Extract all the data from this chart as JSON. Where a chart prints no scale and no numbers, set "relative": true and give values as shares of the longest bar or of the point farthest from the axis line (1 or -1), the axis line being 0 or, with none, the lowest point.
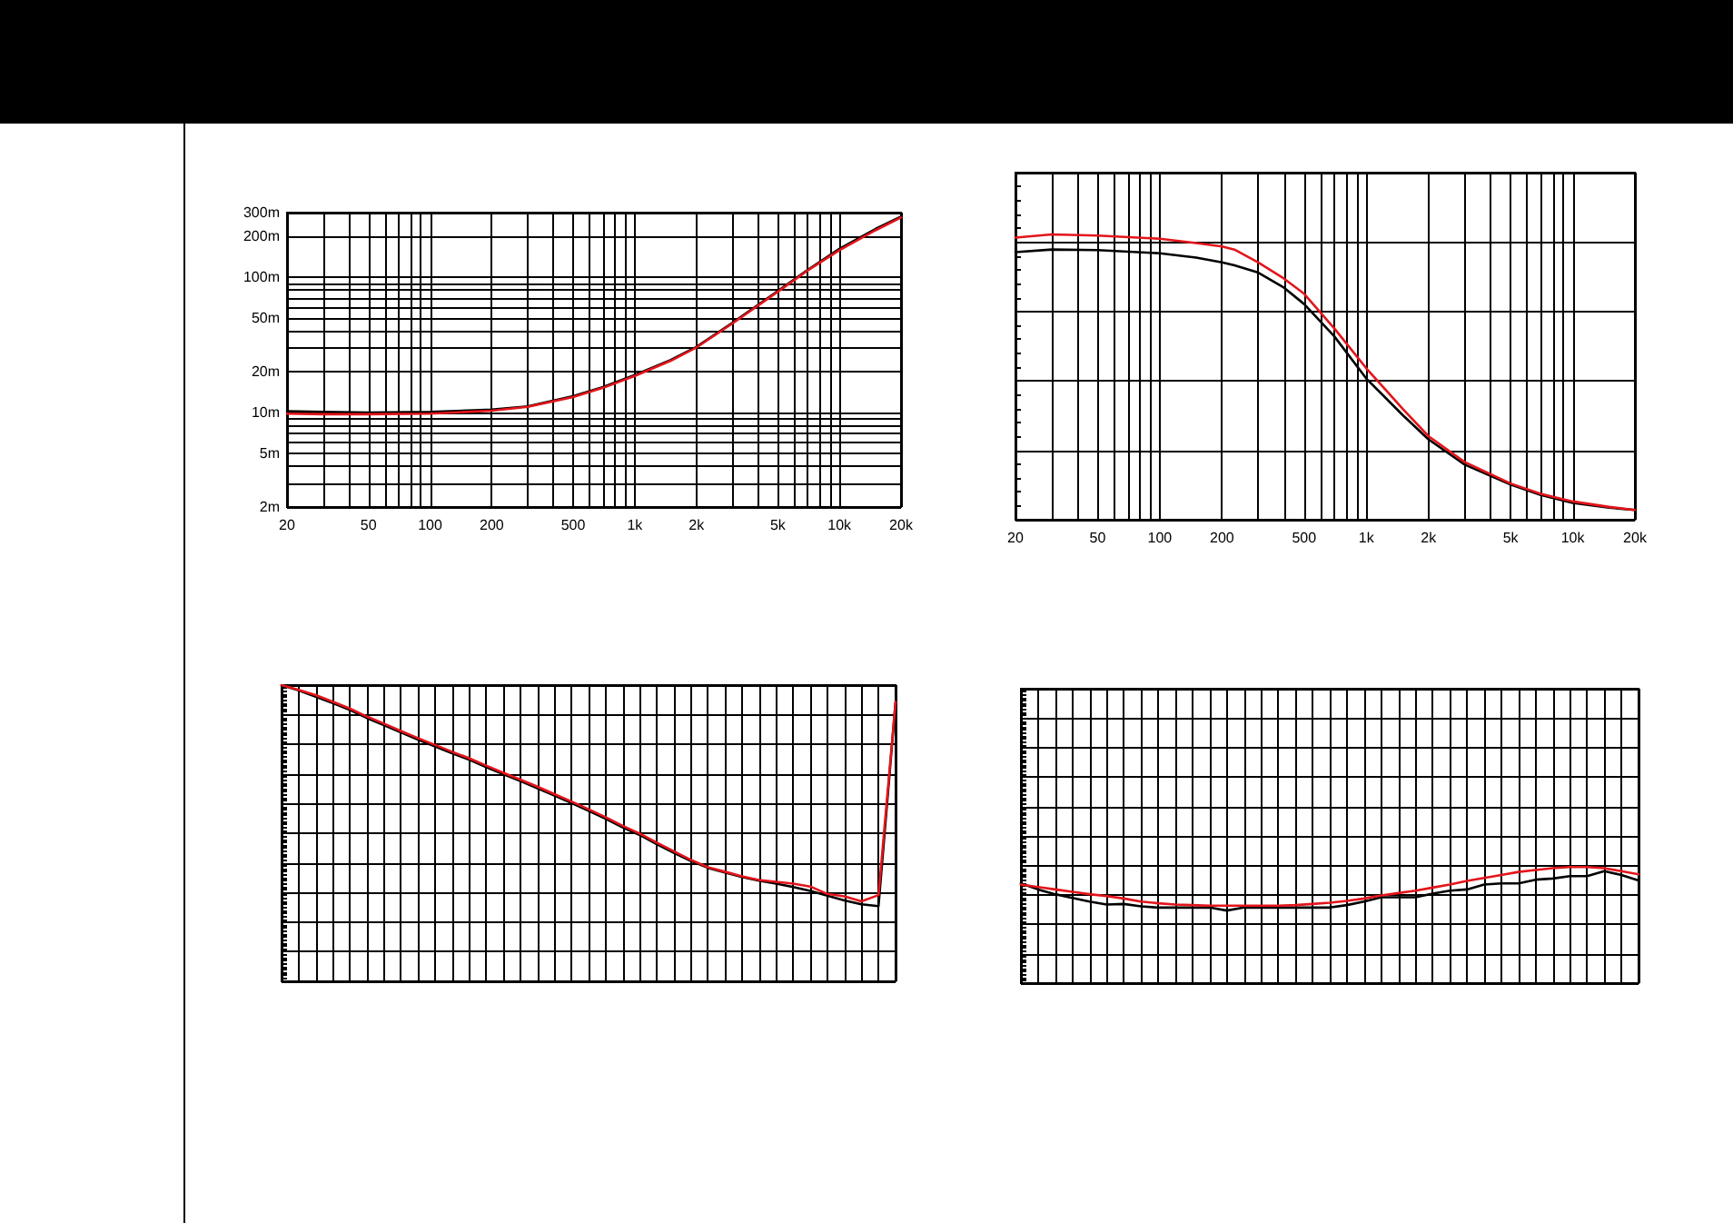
{
  "chart_data": [
    {
      "type": "line",
      "x": [
        20,
        30,
        50,
        100,
        200,
        300,
        500,
        700,
        1000,
        1500,
        2000,
        3000,
        5000,
        7000,
        10000,
        15000,
        20000
      ],
      "series": [
        {
          "color": "#000000",
          "values": [
            10.2,
            10.1,
            10,
            10.1,
            10.5,
            11.1,
            13.2,
            15.4,
            18.9,
            24.4,
            30.5,
            45.9,
            79,
            113,
            162,
            227,
            280
          ]
        },
        {
          "color": "#e3151b",
          "values": [
            9.8,
            9.7,
            9.7,
            9.8,
            10.3,
            11,
            13,
            15.2,
            18.6,
            24.1,
            30.2,
            45.5,
            78,
            112,
            158,
            222,
            276
          ]
        }
      ],
      "xlim": [
        20,
        20000
      ],
      "ylim": [
        2,
        300
      ],
      "xticks": [
        20,
        {
          "value": 30,
          "label": null
        },
        {
          "value": 40,
          "label": null
        },
        50,
        {
          "value": 60,
          "label": null
        },
        {
          "value": 70,
          "label": null
        },
        {
          "value": 80,
          "label": null
        },
        {
          "value": 90,
          "label": null
        },
        100,
        200,
        {
          "value": 300,
          "label": null
        },
        {
          "value": 400,
          "label": null
        },
        500,
        {
          "value": 600,
          "label": null
        },
        {
          "value": 700,
          "label": null
        },
        {
          "value": 800,
          "label": null
        },
        {
          "value": 900,
          "label": null
        },
        {
          "value": 1000,
          "label": "1k"
        },
        {
          "value": 2000,
          "label": "2k"
        },
        {
          "value": 3000,
          "label": null
        },
        {
          "value": 4000,
          "label": null
        },
        {
          "value": 5000,
          "label": "5k"
        },
        {
          "value": 6000,
          "label": null
        },
        {
          "value": 7000,
          "label": null
        },
        {
          "value": 8000,
          "label": null
        },
        {
          "value": 9000,
          "label": null
        },
        {
          "value": 10000,
          "label": "10k"
        },
        {
          "value": 20000,
          "label": "20k"
        }
      ],
      "yticks": [
        {
          "value": 2,
          "label": "2m"
        },
        {
          "value": 3,
          "label": null
        },
        {
          "value": 4,
          "label": null
        },
        {
          "value": 5,
          "label": "5m"
        },
        {
          "value": 6,
          "label": null
        },
        {
          "value": 7,
          "label": null
        },
        {
          "value": 8,
          "label": null
        },
        {
          "value": 9,
          "label": null
        },
        {
          "value": 10,
          "label": "10m"
        },
        {
          "value": 20,
          "label": "20m"
        },
        {
          "value": 30,
          "label": null
        },
        {
          "value": 40,
          "label": null
        },
        {
          "value": 50,
          "label": "50m"
        },
        {
          "value": 60,
          "label": null
        },
        {
          "value": 70,
          "label": null
        },
        {
          "value": 80,
          "label": null
        },
        {
          "value": 90,
          "label": null
        },
        {
          "value": 100,
          "label": "100m"
        },
        {
          "value": 200,
          "label": "200m"
        },
        {
          "value": 300,
          "label": "300m"
        }
      ],
      "log": "xy",
      "grid": true
    },
    {
      "type": "line",
      "x": [
        20,
        30,
        50,
        100,
        150,
        200,
        230,
        300,
        400,
        500,
        700,
        1000,
        1500,
        2000,
        3000,
        5000,
        7000,
        10000,
        15000,
        20000
      ],
      "series": [
        {
          "color": "#000000",
          "values": [
            0.938,
            0.947,
            0.945,
            0.934,
            0.919,
            0.902,
            0.892,
            0.866,
            0.813,
            0.756,
            0.643,
            0.495,
            0.367,
            0.282,
            0.193,
            0.123,
            0.087,
            0.059,
            0.042,
            0.034
          ]
        },
        {
          "color": "#e3151b",
          "values": [
            0.989,
            1,
            0.996,
            0.985,
            0.97,
            0.958,
            0.947,
            0.902,
            0.845,
            0.792,
            0.671,
            0.531,
            0.389,
            0.293,
            0.202,
            0.127,
            0.091,
            0.064,
            0.045,
            0.034
          ]
        }
      ],
      "relative": true,
      "xlim": [
        20,
        20000
      ],
      "xticks": [
        20,
        {
          "value": 30,
          "label": null
        },
        {
          "value": 40,
          "label": null
        },
        50,
        {
          "value": 60,
          "label": null
        },
        {
          "value": 70,
          "label": null
        },
        {
          "value": 80,
          "label": null
        },
        {
          "value": 90,
          "label": null
        },
        100,
        200,
        {
          "value": 300,
          "label": null
        },
        {
          "value": 400,
          "label": null
        },
        500,
        {
          "value": 600,
          "label": null
        },
        {
          "value": 700,
          "label": null
        },
        {
          "value": 800,
          "label": null
        },
        {
          "value": 900,
          "label": null
        },
        {
          "value": 1000,
          "label": "1k"
        },
        {
          "value": 2000,
          "label": "2k"
        },
        {
          "value": 3000,
          "label": null
        },
        {
          "value": 4000,
          "label": null
        },
        {
          "value": 5000,
          "label": "5k"
        },
        {
          "value": 6000,
          "label": null
        },
        {
          "value": 7000,
          "label": null
        },
        {
          "value": 8000,
          "label": null
        },
        {
          "value": 9000,
          "label": null
        },
        {
          "value": 10000,
          "label": "10k"
        },
        {
          "value": 20000,
          "label": "20k"
        }
      ],
      "log": "x",
      "grid": true,
      "tick_labels": "x"
    },
    {
      "type": "line",
      "categories": [
        null,
        null,
        null,
        null,
        null,
        null,
        null,
        null,
        null,
        null,
        null,
        null,
        null,
        null,
        null,
        null,
        null,
        null,
        null,
        null,
        null,
        null,
        null,
        null,
        null,
        null,
        null,
        null,
        null,
        null,
        null,
        null,
        null,
        null,
        null,
        null,
        null
      ],
      "series": [
        {
          "color": "#000000",
          "values": [
            1,
            0.982,
            0.961,
            0.939,
            0.916,
            0.889,
            0.865,
            0.84,
            0.816,
            0.793,
            0.77,
            0.748,
            0.723,
            0.699,
            0.676,
            0.652,
            0.627,
            0.602,
            0.576,
            0.549,
            0.52,
            0.494,
            0.463,
            0.434,
            0.406,
            0.383,
            0.367,
            0.352,
            0.34,
            0.33,
            0.318,
            0.305,
            0.289,
            0.273,
            0.26,
            0.254,
            0.943
          ]
        },
        {
          "color": "#e3151b",
          "values": [
            1,
            0.984,
            0.966,
            0.944,
            0.921,
            0.894,
            0.87,
            0.845,
            0.821,
            0.798,
            0.775,
            0.753,
            0.728,
            0.704,
            0.681,
            0.657,
            0.632,
            0.607,
            0.581,
            0.554,
            0.525,
            0.499,
            0.468,
            0.439,
            0.41,
            0.385,
            0.37,
            0.354,
            0.342,
            0.336,
            0.33,
            0.32,
            0.295,
            0.287,
            0.27,
            0.291,
            0.943
          ]
        }
      ],
      "relative": true,
      "grid": true,
      "tick_labels": false
    },
    {
      "type": "line",
      "categories": [
        null,
        null,
        null,
        null,
        null,
        null,
        null,
        null,
        null,
        null,
        null,
        null,
        null,
        null,
        null,
        null,
        null,
        null,
        null,
        null,
        null,
        null,
        null,
        null,
        null,
        null,
        null,
        null,
        null,
        null,
        null,
        null,
        null,
        null,
        null,
        null,
        null
      ],
      "series": [
        {
          "color": "#000000",
          "values": [
            0.859,
            0.807,
            0.766,
            0.734,
            0.703,
            0.677,
            0.682,
            0.661,
            0.651,
            0.651,
            0.651,
            0.651,
            0.625,
            0.651,
            0.651,
            0.651,
            0.651,
            0.651,
            0.651,
            0.672,
            0.703,
            0.74,
            0.74,
            0.74,
            0.771,
            0.797,
            0.807,
            0.849,
            0.859,
            0.859,
            0.891,
            0.901,
            0.922,
            0.922,
            0.964,
            0.932,
            0.885
          ]
        },
        {
          "color": "#e3151b",
          "values": [
            0.849,
            0.828,
            0.807,
            0.786,
            0.766,
            0.75,
            0.729,
            0.703,
            0.688,
            0.677,
            0.672,
            0.667,
            0.667,
            0.667,
            0.667,
            0.667,
            0.672,
            0.682,
            0.693,
            0.708,
            0.729,
            0.755,
            0.776,
            0.797,
            0.823,
            0.849,
            0.88,
            0.906,
            0.932,
            0.958,
            0.974,
            0.99,
            1,
            1,
            0.99,
            0.964,
            0.938
          ]
        }
      ],
      "relative": true,
      "grid": true,
      "tick_labels": false
    }
  ]
}
